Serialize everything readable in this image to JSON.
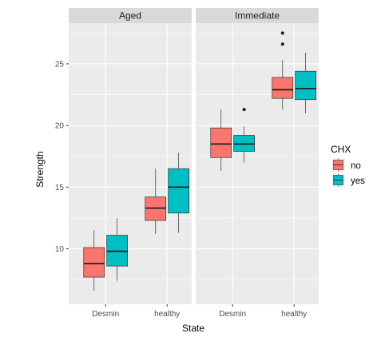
{
  "chart_data": {
    "type": "boxplot",
    "xlabel": "State",
    "ylabel": "Strength",
    "ylim": [
      5.5,
      28.3
    ],
    "yticks": [
      10,
      15,
      20,
      25
    ],
    "categories": [
      "Desmin",
      "healthy"
    ],
    "facets": [
      "Aged",
      "Immediate"
    ],
    "legend": {
      "title": "CHX",
      "placement": "right",
      "entries": [
        {
          "label": "no",
          "color": "#F8766D"
        },
        {
          "label": "yes",
          "color": "#00BFC4"
        }
      ]
    },
    "series": [
      {
        "name": "no",
        "color": "#F8766D",
        "boxes": {
          "Aged": {
            "Desmin": {
              "min": 6.6,
              "q1": 7.7,
              "median": 8.8,
              "q3": 10.1,
              "max": 11.5,
              "outliers": []
            },
            "healthy": {
              "min": 11.2,
              "q1": 12.3,
              "median": 13.3,
              "q3": 14.2,
              "max": 16.5,
              "outliers": []
            }
          },
          "Immediate": {
            "Desmin": {
              "min": 16.3,
              "q1": 17.4,
              "median": 18.5,
              "q3": 19.8,
              "max": 21.3,
              "outliers": []
            },
            "healthy": {
              "min": 21.3,
              "q1": 22.2,
              "median": 22.9,
              "q3": 23.9,
              "max": 25.3,
              "outliers": [
                26.6,
                27.5
              ]
            }
          }
        }
      },
      {
        "name": "yes",
        "color": "#00BFC4",
        "boxes": {
          "Aged": {
            "Desmin": {
              "min": 7.4,
              "q1": 8.6,
              "median": 9.8,
              "q3": 11.1,
              "max": 12.5,
              "outliers": []
            },
            "healthy": {
              "min": 11.3,
              "q1": 12.9,
              "median": 15.0,
              "q3": 16.5,
              "max": 17.8,
              "outliers": []
            }
          },
          "Immediate": {
            "Desmin": {
              "min": 17.0,
              "q1": 17.9,
              "median": 18.5,
              "q3": 19.2,
              "max": 19.9,
              "outliers": [
                21.3
              ]
            },
            "healthy": {
              "min": 21.0,
              "q1": 22.1,
              "median": 23.0,
              "q3": 24.4,
              "max": 25.9,
              "outliers": []
            }
          }
        }
      }
    ],
    "grid": true
  }
}
